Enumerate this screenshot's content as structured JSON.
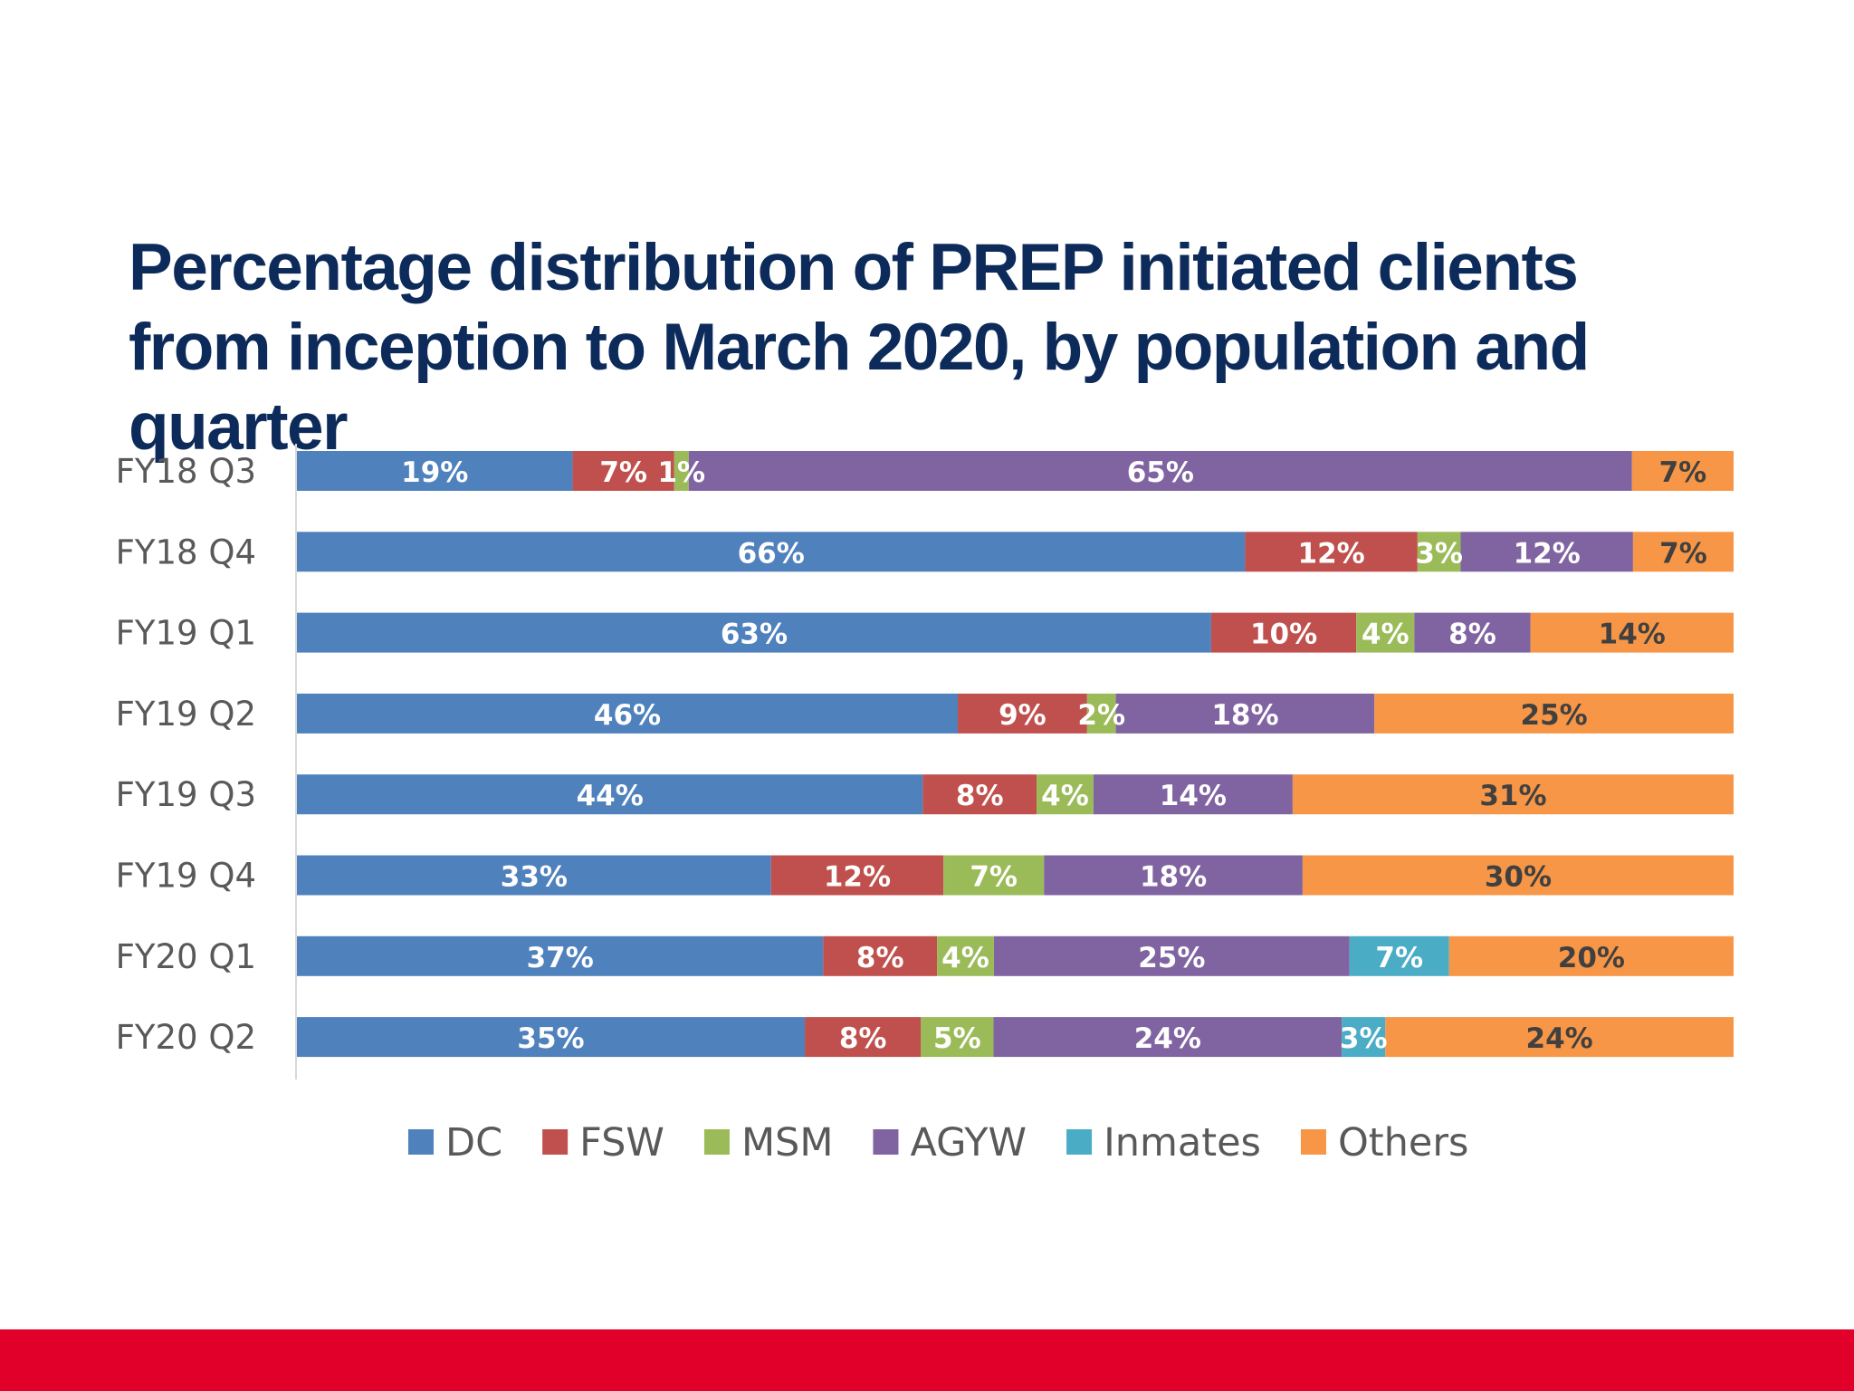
{
  "slide": {
    "title": "Percentage distribution of PREP initiated clients from inception to March 2020, by population and quarter",
    "footer_color": "#e0002a"
  },
  "chart_data": {
    "type": "bar",
    "orientation": "horizontal",
    "stacked": "percent",
    "title": "Percentage distribution of PREP initiated clients from inception to March 2020, by population and quarter",
    "xlabel": "",
    "ylabel": "",
    "categories": [
      "FY18 Q3",
      "FY18 Q4",
      "FY19 Q1",
      "FY19 Q2",
      "FY19 Q3",
      "FY19 Q4",
      "FY20 Q1",
      "FY20 Q2"
    ],
    "series": [
      {
        "name": "DC",
        "color": "#4f81bd",
        "values": [
          19,
          66,
          63,
          46,
          44,
          33,
          37,
          35
        ]
      },
      {
        "name": "FSW",
        "color": "#c0504d",
        "values": [
          7,
          12,
          10,
          9,
          8,
          12,
          8,
          8
        ]
      },
      {
        "name": "MSM",
        "color": "#9bbb59",
        "values": [
          1,
          3,
          4,
          2,
          4,
          7,
          4,
          5
        ]
      },
      {
        "name": "AGYW",
        "color": "#8064a2",
        "values": [
          65,
          12,
          8,
          18,
          14,
          18,
          25,
          24
        ]
      },
      {
        "name": "Inmates",
        "color": "#4bacc6",
        "values": [
          0,
          0,
          0,
          0,
          0,
          0,
          7,
          3
        ]
      },
      {
        "name": "Others",
        "color": "#f79646",
        "values": [
          7,
          7,
          14,
          25,
          31,
          30,
          20,
          24
        ]
      }
    ],
    "data_labels": [
      [
        "19%",
        "7%",
        "1%",
        "65%",
        "",
        "7%"
      ],
      [
        "66%",
        "12%",
        "3%",
        "12%",
        "",
        "7%"
      ],
      [
        "63%",
        "10%",
        "4%",
        "8%",
        "",
        "14%"
      ],
      [
        "46%",
        "9%",
        "2%",
        "18%",
        "",
        "25%"
      ],
      [
        "44%",
        "8%",
        "4%",
        "14%",
        "",
        "31%"
      ],
      [
        "33%",
        "12%",
        "7%",
        "18%",
        "",
        "30%"
      ],
      [
        "37%",
        "8%",
        "4%",
        "25%",
        "7%",
        "20%"
      ],
      [
        "35%",
        "8%",
        "5%",
        "24%",
        "3%",
        "24%"
      ]
    ],
    "legend_position": "bottom",
    "grid": false
  }
}
